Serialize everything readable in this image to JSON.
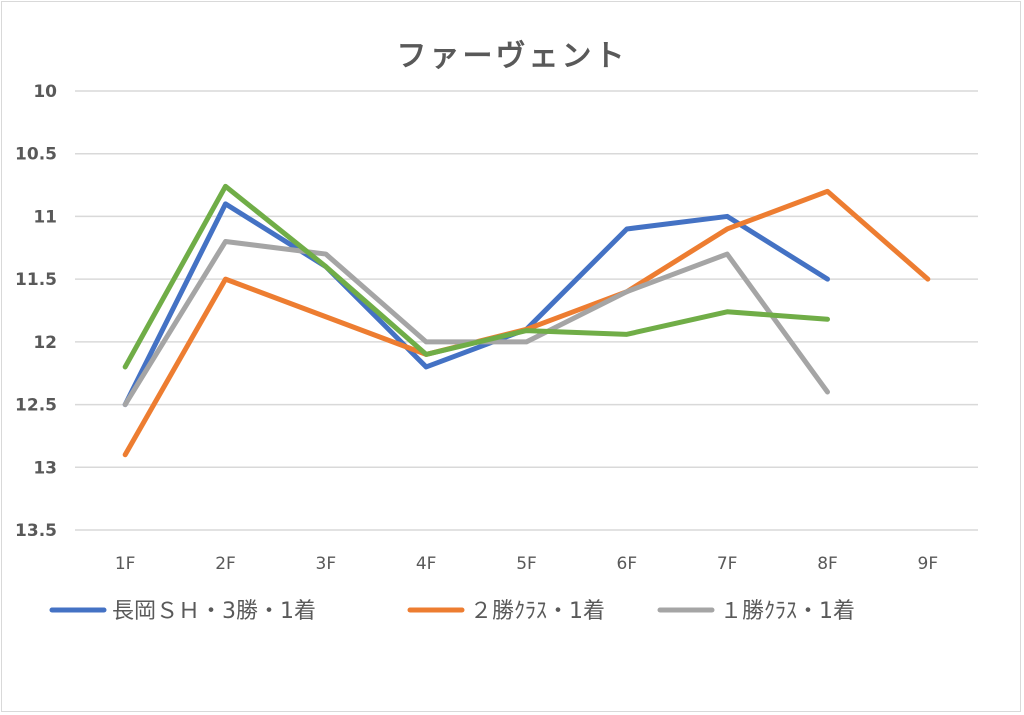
{
  "chart_data": {
    "type": "line",
    "title": "ファーヴェント",
    "xlabel": "",
    "ylabel": "",
    "categories": [
      "1F",
      "2F",
      "3F",
      "4F",
      "5F",
      "6F",
      "7F",
      "8F",
      "9F"
    ],
    "y_ticks": [
      "10",
      "10.5",
      "11",
      "11.5",
      "12",
      "12.5",
      "13",
      "13.5"
    ],
    "ylim": [
      10,
      13.5
    ],
    "y_reversed": true,
    "grid": true,
    "legend_position": "bottom",
    "series": [
      {
        "name": "長岡ＳＨ・3勝・1着",
        "color": "#4472c4",
        "values": [
          12.5,
          10.9,
          11.4,
          12.2,
          11.9,
          11.1,
          11.0,
          11.5,
          null
        ],
        "in_legend": true
      },
      {
        "name": "２勝ｸﾗｽ・1着",
        "color": "#ed7d31",
        "values": [
          12.9,
          11.5,
          11.8,
          12.1,
          11.9,
          11.6,
          11.1,
          10.8,
          11.5
        ],
        "in_legend": true
      },
      {
        "name": "１勝ｸﾗｽ・1着",
        "color": "#a5a5a5",
        "values": [
          12.5,
          11.2,
          11.3,
          12.0,
          12.0,
          11.6,
          11.3,
          12.4,
          null
        ],
        "in_legend": true
      },
      {
        "name": "",
        "color": "#70ad47",
        "values": [
          12.2,
          10.76,
          11.4,
          12.1,
          11.91,
          11.94,
          11.76,
          11.82,
          null
        ],
        "in_legend": false
      }
    ]
  }
}
